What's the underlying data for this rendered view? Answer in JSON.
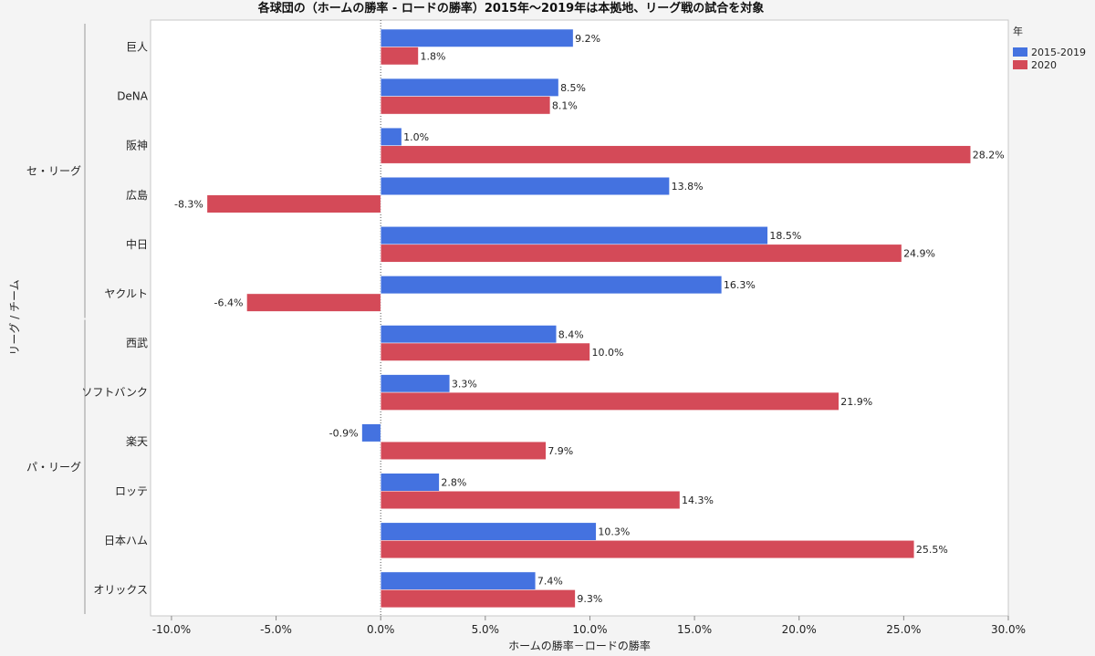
{
  "chart_data": {
    "type": "bar",
    "orientation": "horizontal",
    "title": "各球団の（ホームの勝率 - ロードの勝率）2015年～2019年は本拠地、リーグ戦の試合を対象",
    "xlabel": "ホームの勝率－ロードの勝率",
    "ylabel": "リーグ / チーム",
    "xlim": [
      -0.11,
      0.3
    ],
    "xticks": [
      -0.1,
      -0.05,
      0,
      0.05,
      0.1,
      0.15,
      0.2,
      0.25,
      0.3
    ],
    "xtick_labels": [
      "-10.0%",
      "-5.0%",
      "0.0%",
      "5.0%",
      "10.0%",
      "15.0%",
      "20.0%",
      "25.0%",
      "30.0%"
    ],
    "legend_title": "年",
    "legend_position": "top-right",
    "groups": [
      {
        "name": "セ・リーグ",
        "categories": [
          "巨人",
          "DeNA",
          "阪神",
          "広島",
          "中日",
          "ヤクルト"
        ]
      },
      {
        "name": "パ・リーグ",
        "categories": [
          "西武",
          "ソフトバンク",
          "楽天",
          "ロッテ",
          "日本ハム",
          "オリックス"
        ]
      }
    ],
    "categories": [
      "巨人",
      "DeNA",
      "阪神",
      "広島",
      "中日",
      "ヤクルト",
      "西武",
      "ソフトバンク",
      "楽天",
      "ロッテ",
      "日本ハム",
      "オリックス"
    ],
    "series": [
      {
        "name": "2015-2019",
        "color": "#4472e0",
        "values": [
          0.092,
          0.085,
          0.01,
          0.138,
          0.185,
          0.163,
          0.084,
          0.033,
          -0.009,
          0.028,
          0.103,
          0.074
        ],
        "labels": [
          "9.2%",
          "8.5%",
          "1.0%",
          "13.8%",
          "18.5%",
          "16.3%",
          "8.4%",
          "3.3%",
          "-0.9%",
          "2.8%",
          "10.3%",
          "7.4%"
        ]
      },
      {
        "name": "2020",
        "color": "#d44a58",
        "values": [
          0.018,
          0.081,
          0.282,
          -0.083,
          0.249,
          null,
          0.1,
          0.219,
          0.079,
          0.143,
          0.255,
          0.093
        ],
        "labels": [
          "1.8%",
          "8.1%",
          "28.2%",
          "-8.3%",
          "24.9%",
          "-6.4%",
          "10.0%",
          "21.9%",
          "7.9%",
          "14.3%",
          "25.5%",
          "9.3%"
        ]
      }
    ],
    "notes": "ヤクルト 2020 bar drawn at -6.4%"
  }
}
